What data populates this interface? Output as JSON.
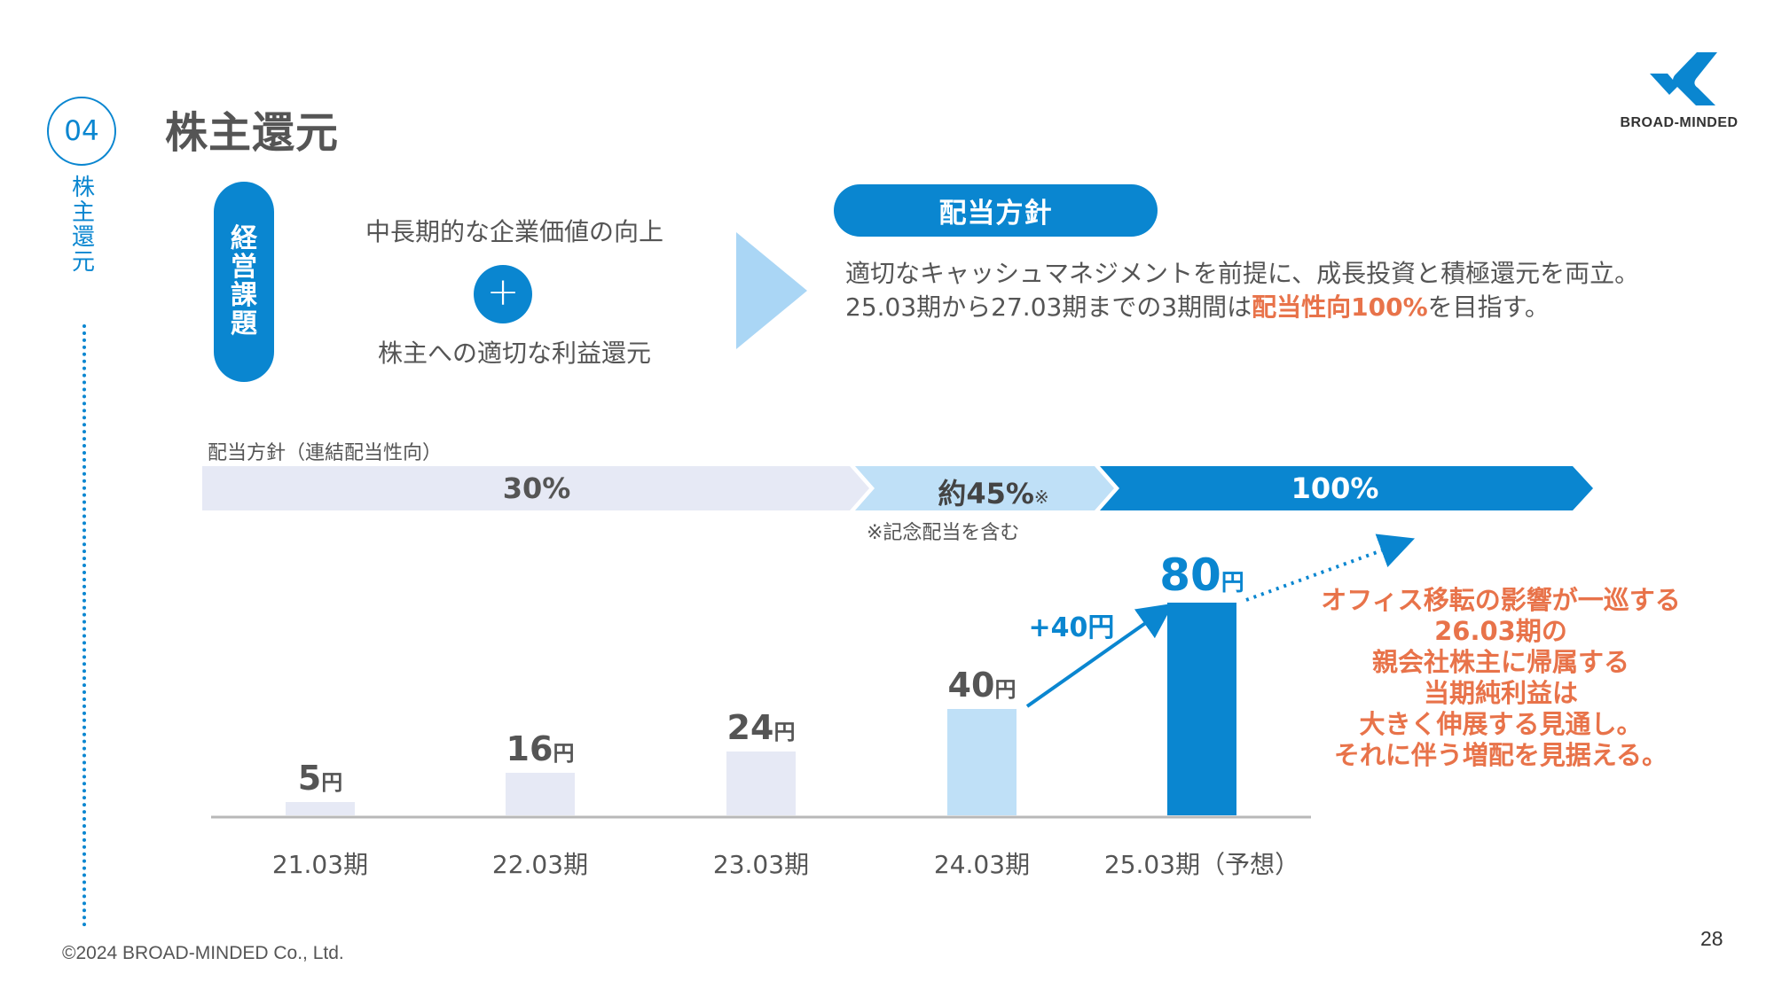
{
  "section": {
    "number": "04",
    "label": [
      "株",
      "主",
      "還",
      "元"
    ]
  },
  "title": "株主還元",
  "logo": {
    "text": "BROAD-MINDED",
    "accent": "#0a86d0"
  },
  "issues": {
    "label": [
      "経",
      "営",
      "課",
      "題"
    ],
    "item1": "中長期的な企業価値の向上",
    "plus": "+",
    "item2": "株主への適切な利益還元"
  },
  "policy": {
    "title": "配当方針",
    "line1": "適切なキャッシュマネジメントを前提に、成長投資と積極還元を両立。",
    "line2_pre": "25.03期から27.03期までの3期間は",
    "line2_hl": "配当性向100%",
    "line2_post": "を目指す。"
  },
  "payout_ratio": {
    "label": "配当方針（連結配当性向）",
    "segments": [
      {
        "text": "30%",
        "color": "#e6e9f5",
        "text_color": "#555555"
      },
      {
        "text": "約45%",
        "mark": "※",
        "color": "#bfe0f7",
        "text_color": "#444444"
      },
      {
        "text": "100%",
        "color": "#0a86d0",
        "text_color": "#ffffff"
      }
    ],
    "note": "※記念配当を含む"
  },
  "chart_data": {
    "type": "bar",
    "categories": [
      "21.03期",
      "22.03期",
      "23.03期",
      "24.03期",
      "25.03期（予想）"
    ],
    "values": [
      5,
      16,
      24,
      40,
      80
    ],
    "unit": "円",
    "colors": [
      "#e6e9f5",
      "#e6e9f5",
      "#e6e9f5",
      "#bfe0f7",
      "#0a86d0"
    ],
    "label_colors": [
      "#555555",
      "#555555",
      "#555555",
      "#555555",
      "#0a86d0"
    ],
    "increase_label": "+40円",
    "increase_color": "#0a86d0",
    "title": "",
    "xlabel": "",
    "ylabel": ""
  },
  "annotation": {
    "lines": [
      "オフィス移転の影響が一巡する",
      "26.03期の",
      "親会社株主に帰属する",
      "当期純利益は",
      "大きく伸展する見通し。",
      "それに伴う増配を見据える。"
    ],
    "color": "#e8734a"
  },
  "footer": "©2024 BROAD-MINDED Co., Ltd.",
  "page_number": "28"
}
